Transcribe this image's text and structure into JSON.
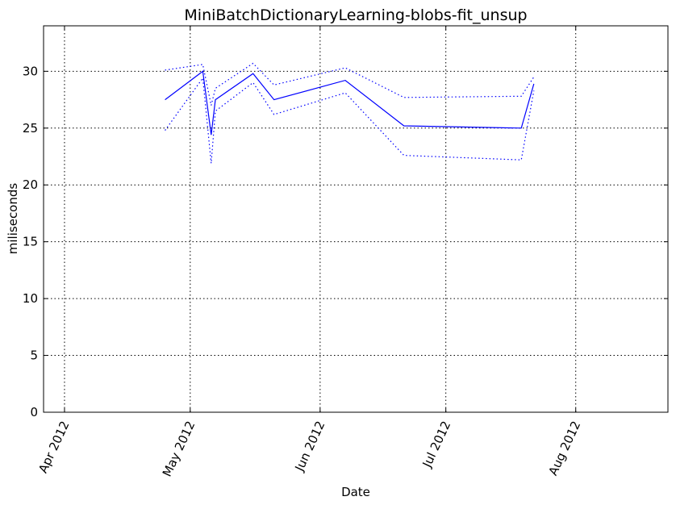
{
  "chart_data": {
    "type": "line",
    "title": "MiniBatchDictionaryLearning-blobs-fit_unsup",
    "xlabel": "Date",
    "ylabel": "miliseconds",
    "x_ticks": [
      "2012-04-01",
      "2012-05-01",
      "2012-06-01",
      "2012-07-01",
      "2012-08-01"
    ],
    "x_tick_labels": [
      "Apr 2012",
      "May 2012",
      "Jun 2012",
      "Jul 2012",
      "Aug 2012"
    ],
    "xlim": [
      "2012-03-27",
      "2012-08-23"
    ],
    "y_ticks": [
      0,
      5,
      10,
      15,
      20,
      25,
      30
    ],
    "y_tick_labels": [
      "0",
      "5",
      "10",
      "15",
      "20",
      "25",
      "30"
    ],
    "ylim": [
      0,
      34
    ],
    "grid": true,
    "color": "#0000ff",
    "series": [
      {
        "style": "solid",
        "x": [
          "2012-04-25",
          "2012-05-04",
          "2012-05-06",
          "2012-05-07",
          "2012-05-16",
          "2012-05-21",
          "2012-06-07",
          "2012-06-21",
          "2012-07-19",
          "2012-07-22"
        ],
        "y": [
          27.5,
          30.0,
          24.4,
          27.5,
          29.8,
          27.5,
          29.2,
          25.2,
          25.0,
          28.9
        ]
      },
      {
        "style": "dotted",
        "x": [
          "2012-04-25",
          "2012-05-04",
          "2012-05-06",
          "2012-05-07",
          "2012-05-16",
          "2012-05-21",
          "2012-06-07",
          "2012-06-21",
          "2012-07-19",
          "2012-07-22"
        ],
        "y": [
          30.1,
          30.6,
          27.0,
          28.5,
          30.7,
          28.8,
          30.3,
          27.7,
          27.8,
          29.5
        ]
      },
      {
        "style": "dotted",
        "x": [
          "2012-04-25",
          "2012-05-04",
          "2012-05-06",
          "2012-05-07",
          "2012-05-16",
          "2012-05-21",
          "2012-06-07",
          "2012-06-21",
          "2012-07-19",
          "2012-07-22"
        ],
        "y": [
          24.8,
          29.4,
          21.9,
          26.5,
          29.0,
          26.2,
          28.1,
          22.6,
          22.2,
          28.3
        ]
      }
    ]
  }
}
